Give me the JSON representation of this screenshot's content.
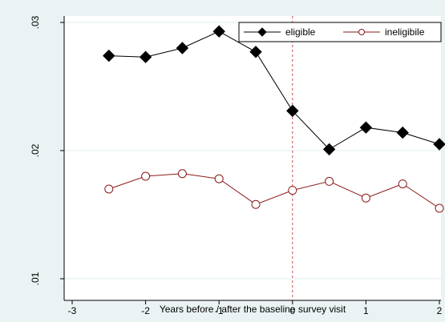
{
  "chart_data": {
    "type": "line",
    "title": "",
    "xlabel": "Years before / after the baseline survey visit",
    "ylabel": "",
    "xlim": [
      -3,
      2
    ],
    "ylim": [
      0.01,
      0.03
    ],
    "xticks": [
      {
        "value": -3,
        "label": "-3"
      },
      {
        "value": -2,
        "label": "-2"
      },
      {
        "value": -1,
        "label": "-1"
      },
      {
        "value": 0,
        "label": "0"
      },
      {
        "value": 1,
        "label": "1"
      },
      {
        "value": 2,
        "label": "2"
      }
    ],
    "yticks": [
      {
        "value": 0.01,
        "label": ".01"
      },
      {
        "value": 0.02,
        "label": ".02"
      },
      {
        "value": 0.03,
        "label": ".03"
      }
    ],
    "grid": true,
    "reference_line": {
      "x": 0,
      "color": "#c0504d",
      "style": "dashed"
    },
    "legend": {
      "position": "top-right"
    },
    "x": [
      -2.5,
      -2,
      -1.5,
      -1,
      -0.5,
      0,
      0.5,
      1,
      1.5,
      2
    ],
    "series": [
      {
        "name": "eligible",
        "color": "#000000",
        "marker": "diamond-filled",
        "values": [
          0.0274,
          0.0273,
          0.028,
          0.0293,
          0.0277,
          0.0231,
          0.0201,
          0.0218,
          0.0214,
          0.0205
        ]
      },
      {
        "name": "ineligibile",
        "color": "#8b1a1a",
        "marker": "circle-hollow",
        "values": [
          0.017,
          0.018,
          0.0182,
          0.0178,
          0.0158,
          0.0169,
          0.0176,
          0.0163,
          0.0174,
          0.0155
        ]
      }
    ]
  }
}
